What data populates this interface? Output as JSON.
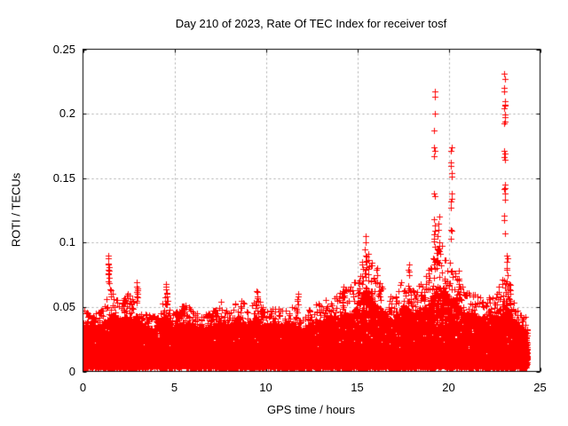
{
  "chart_data": {
    "type": "scatter",
    "title": "Day 210 of 2023, Rate Of TEC Index for receiver tosf",
    "xlabel": "GPS time / hours",
    "ylabel": "ROTI / TECUs",
    "xlim": [
      0,
      25
    ],
    "ylim": [
      0,
      0.25
    ],
    "xticks": [
      "0",
      "5",
      "10",
      "15",
      "20",
      "25"
    ],
    "yticks": [
      "0",
      "0.05",
      "0.1",
      "0.15",
      "0.2",
      "0.25"
    ],
    "grid": "dashed",
    "grid_color": "#a8a8a8",
    "axis_color": "#000000",
    "background_color": "#ffffff",
    "marker": "plus",
    "marker_color": "#ff0000",
    "data_range_hours": [
      0,
      24.3
    ],
    "baseline_band": {
      "bottom_min": 0.001,
      "bottom_typical": 0.006,
      "dense_top_typical": 0.035
    },
    "band_envelope": {
      "bin_hours": 0.5,
      "start_hour": 0,
      "upper": [
        0.05,
        0.044,
        0.046,
        0.062,
        0.052,
        0.06,
        0.048,
        0.044,
        0.042,
        0.06,
        0.044,
        0.052,
        0.048,
        0.042,
        0.046,
        0.054,
        0.046,
        0.058,
        0.048,
        0.058,
        0.046,
        0.05,
        0.046,
        0.052,
        0.04,
        0.05,
        0.052,
        0.056,
        0.06,
        0.065,
        0.07,
        0.095,
        0.075,
        0.062,
        0.055,
        0.072,
        0.062,
        0.068,
        0.08,
        0.1,
        0.085,
        0.072,
        0.062,
        0.058,
        0.055,
        0.06,
        0.075,
        0.055,
        0.042
      ]
    },
    "spikes": [
      {
        "x": 1.4,
        "values": [
          0.07,
          0.073,
          0.076,
          0.078,
          0.081,
          0.084,
          0.088,
          0.09
        ]
      },
      {
        "x": 1.5,
        "values": [
          0.06,
          0.064
        ]
      },
      {
        "x": 2.95,
        "values": [
          0.055,
          0.058,
          0.06,
          0.063,
          0.066,
          0.069
        ]
      },
      {
        "x": 4.55,
        "values": [
          0.052,
          0.055,
          0.058,
          0.061,
          0.064,
          0.068
        ]
      },
      {
        "x": 9.5,
        "values": [
          0.055,
          0.058,
          0.062
        ]
      },
      {
        "x": 11.75,
        "values": [
          0.052,
          0.056,
          0.06
        ]
      },
      {
        "x": 14.2,
        "values": [
          0.058,
          0.062,
          0.066
        ]
      },
      {
        "x": 15.45,
        "values": [
          0.085,
          0.09,
          0.095,
          0.1,
          0.105
        ]
      },
      {
        "x": 16.1,
        "values": [
          0.075,
          0.08
        ]
      },
      {
        "x": 17.8,
        "values": [
          0.075,
          0.079,
          0.083
        ]
      },
      {
        "x": 19.22,
        "values": [
          0.097,
          0.103,
          0.109,
          0.113,
          0.118,
          0.138,
          0.167,
          0.174,
          0.187,
          0.2,
          0.213,
          0.217
        ]
      },
      {
        "x": 19.45,
        "values": [
          0.095,
          0.1,
          0.105,
          0.11,
          0.115,
          0.12
        ]
      },
      {
        "x": 20.15,
        "values": [
          0.103,
          0.11,
          0.127,
          0.134,
          0.138,
          0.154,
          0.162,
          0.171,
          0.174
        ]
      },
      {
        "x": 20.55,
        "values": [
          0.06,
          0.066,
          0.072,
          0.078
        ]
      },
      {
        "x": 23.06,
        "values": [
          0.107,
          0.121,
          0.133,
          0.142,
          0.145,
          0.169,
          0.171,
          0.194,
          0.197,
          0.204,
          0.207,
          0.21,
          0.217,
          0.22,
          0.231
        ]
      },
      {
        "x": 23.2,
        "values": [
          0.055,
          0.06,
          0.065,
          0.07,
          0.075,
          0.08,
          0.085,
          0.09
        ]
      },
      {
        "x": 23.35,
        "values": [
          0.052,
          0.056,
          0.06,
          0.064,
          0.068
        ]
      }
    ]
  }
}
